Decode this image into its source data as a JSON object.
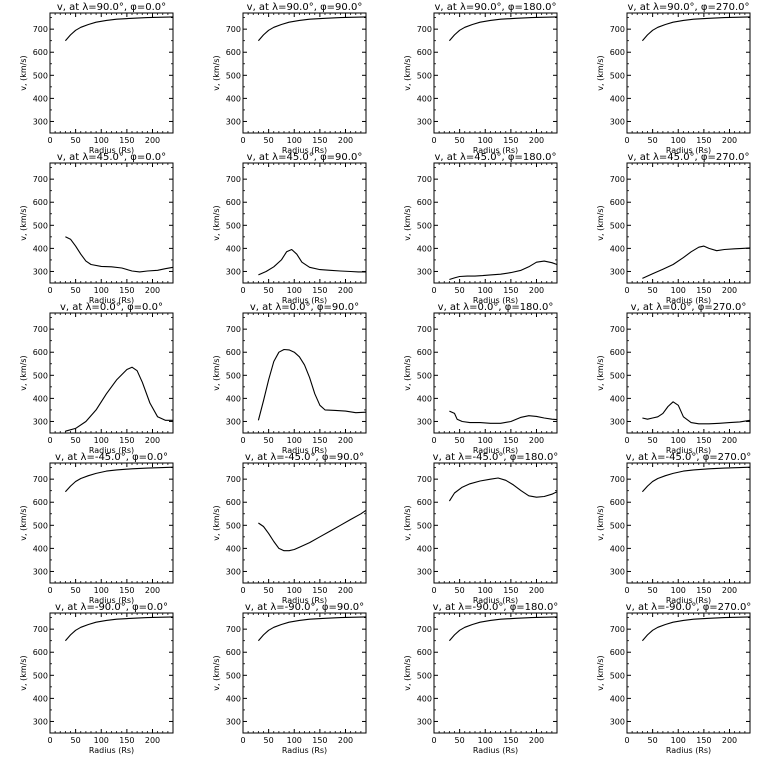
{
  "layout": {
    "rows": 5,
    "cols": 4
  },
  "chart_data": [
    {
      "type": "line",
      "title": "v, at λ=90.0°, φ=0.0°",
      "xlabel": "Radius (Rs)",
      "ylabel": "v, (km/s)",
      "xlim": [
        0,
        240
      ],
      "ylim": [
        250,
        770
      ],
      "xticks": [
        0,
        50,
        100,
        150,
        200
      ],
      "yticks": [
        300,
        400,
        500,
        600,
        700
      ],
      "series": [
        {
          "x": [
            30,
            40,
            50,
            60,
            75,
            90,
            110,
            130,
            160,
            190,
            220,
            240
          ],
          "y": [
            650,
            675,
            695,
            708,
            720,
            730,
            738,
            743,
            747,
            750,
            752,
            753
          ]
        }
      ]
    },
    {
      "type": "line",
      "title": "v, at λ=90.0°, φ=90.0°",
      "xlabel": "Radius (Rs)",
      "ylabel": "v, (km/s)",
      "xlim": [
        0,
        240
      ],
      "ylim": [
        250,
        770
      ],
      "xticks": [
        0,
        50,
        100,
        150,
        200
      ],
      "yticks": [
        300,
        400,
        500,
        600,
        700
      ],
      "series": [
        {
          "x": [
            30,
            40,
            50,
            60,
            75,
            90,
            110,
            130,
            160,
            190,
            220,
            240
          ],
          "y": [
            650,
            675,
            695,
            708,
            720,
            730,
            738,
            743,
            747,
            750,
            752,
            753
          ]
        }
      ]
    },
    {
      "type": "line",
      "title": "v, at λ=90.0°, φ=180.0°",
      "xlabel": "Radius (Rs)",
      "ylabel": "v, (km/s)",
      "xlim": [
        0,
        240
      ],
      "ylim": [
        250,
        770
      ],
      "xticks": [
        0,
        50,
        100,
        150,
        200
      ],
      "yticks": [
        300,
        400,
        500,
        600,
        700
      ],
      "series": [
        {
          "x": [
            30,
            40,
            50,
            60,
            75,
            90,
            110,
            130,
            160,
            190,
            220,
            240
          ],
          "y": [
            650,
            675,
            695,
            708,
            720,
            730,
            738,
            743,
            747,
            750,
            752,
            753
          ]
        }
      ]
    },
    {
      "type": "line",
      "title": "v, at λ=90.0°, φ=270.0°",
      "xlabel": "Radius (Rs)",
      "ylabel": "v, (km/s)",
      "xlim": [
        0,
        240
      ],
      "ylim": [
        250,
        770
      ],
      "xticks": [
        0,
        50,
        100,
        150,
        200
      ],
      "yticks": [
        300,
        400,
        500,
        600,
        700
      ],
      "series": [
        {
          "x": [
            30,
            40,
            50,
            60,
            75,
            90,
            110,
            130,
            160,
            190,
            220,
            240
          ],
          "y": [
            650,
            675,
            695,
            708,
            720,
            730,
            738,
            743,
            747,
            750,
            752,
            753
          ]
        }
      ]
    },
    {
      "type": "line",
      "title": "v, at λ=45.0°, φ=0.0°",
      "xlabel": "Radius (Rs)",
      "ylabel": "v, (km/s)",
      "xlim": [
        0,
        240
      ],
      "ylim": [
        250,
        770
      ],
      "xticks": [
        0,
        50,
        100,
        150,
        200
      ],
      "yticks": [
        300,
        400,
        500,
        600,
        700
      ],
      "series": [
        {
          "x": [
            30,
            40,
            50,
            60,
            70,
            80,
            100,
            120,
            140,
            160,
            175,
            190,
            210,
            225,
            240
          ],
          "y": [
            450,
            440,
            410,
            375,
            345,
            330,
            322,
            320,
            315,
            302,
            298,
            302,
            305,
            312,
            318
          ]
        }
      ]
    },
    {
      "type": "line",
      "title": "v, at λ=45.0°, φ=90.0°",
      "xlabel": "Radius (Rs)",
      "ylabel": "v, (km/s)",
      "xlim": [
        0,
        240
      ],
      "ylim": [
        250,
        770
      ],
      "xticks": [
        0,
        50,
        100,
        150,
        200
      ],
      "yticks": [
        300,
        400,
        500,
        600,
        700
      ],
      "series": [
        {
          "x": [
            30,
            45,
            60,
            75,
            85,
            95,
            105,
            115,
            130,
            150,
            170,
            190,
            210,
            225,
            240
          ],
          "y": [
            285,
            300,
            320,
            350,
            385,
            395,
            375,
            340,
            318,
            308,
            305,
            302,
            300,
            298,
            298
          ]
        }
      ]
    },
    {
      "type": "line",
      "title": "v, at λ=45.0°, φ=180.0°",
      "xlabel": "Radius (Rs)",
      "ylabel": "v, (km/s)",
      "xlim": [
        0,
        240
      ],
      "ylim": [
        250,
        770
      ],
      "xticks": [
        0,
        50,
        100,
        150,
        200
      ],
      "yticks": [
        300,
        400,
        500,
        600,
        700
      ],
      "series": [
        {
          "x": [
            30,
            40,
            50,
            65,
            80,
            95,
            110,
            130,
            150,
            170,
            185,
            200,
            215,
            230,
            240
          ],
          "y": [
            265,
            272,
            278,
            280,
            280,
            282,
            285,
            288,
            295,
            305,
            320,
            340,
            345,
            338,
            330
          ]
        }
      ]
    },
    {
      "type": "line",
      "title": "v, at λ=45.0°, φ=270.0°",
      "xlabel": "Radius (Rs)",
      "ylabel": "v, (km/s)",
      "xlim": [
        0,
        240
      ],
      "ylim": [
        250,
        770
      ],
      "xticks": [
        0,
        50,
        100,
        150,
        200
      ],
      "yticks": [
        300,
        400,
        500,
        600,
        700
      ],
      "series": [
        {
          "x": [
            30,
            50,
            70,
            90,
            110,
            125,
            140,
            150,
            160,
            175,
            190,
            210,
            225,
            240
          ],
          "y": [
            270,
            290,
            310,
            330,
            360,
            385,
            405,
            410,
            400,
            390,
            395,
            398,
            400,
            402
          ]
        }
      ]
    },
    {
      "type": "line",
      "title": "v, at λ=0.0°, φ=0.0°",
      "xlabel": "Radius (Rs)",
      "ylabel": "v, (km/s)",
      "xlim": [
        0,
        240
      ],
      "ylim": [
        250,
        770
      ],
      "xticks": [
        0,
        50,
        100,
        150,
        200
      ],
      "yticks": [
        300,
        400,
        500,
        600,
        700
      ],
      "series": [
        {
          "x": [
            30,
            50,
            70,
            90,
            110,
            130,
            150,
            160,
            170,
            180,
            195,
            210,
            225,
            240
          ],
          "y": [
            258,
            270,
            300,
            350,
            420,
            480,
            525,
            535,
            520,
            470,
            380,
            320,
            305,
            305
          ]
        }
      ]
    },
    {
      "type": "line",
      "title": "v, at λ=0.0°, φ=90.0°",
      "xlabel": "Radius (Rs)",
      "ylabel": "v, (km/s)",
      "xlim": [
        0,
        240
      ],
      "ylim": [
        250,
        770
      ],
      "xticks": [
        0,
        50,
        100,
        150,
        200
      ],
      "yticks": [
        300,
        400,
        500,
        600,
        700
      ],
      "series": [
        {
          "x": [
            30,
            40,
            50,
            60,
            70,
            80,
            90,
            100,
            110,
            120,
            130,
            140,
            150,
            160,
            180,
            200,
            220,
            240
          ],
          "y": [
            305,
            390,
            480,
            560,
            600,
            612,
            610,
            600,
            580,
            545,
            490,
            420,
            370,
            350,
            348,
            345,
            338,
            340
          ]
        }
      ]
    },
    {
      "type": "line",
      "title": "v, at λ=0.0°, φ=180.0°",
      "xlabel": "Radius (Rs)",
      "ylabel": "v, (km/s)",
      "xlim": [
        0,
        240
      ],
      "ylim": [
        250,
        770
      ],
      "xticks": [
        0,
        50,
        100,
        150,
        200
      ],
      "yticks": [
        300,
        400,
        500,
        600,
        700
      ],
      "series": [
        {
          "x": [
            30,
            40,
            45,
            55,
            70,
            90,
            110,
            130,
            150,
            170,
            185,
            200,
            215,
            230,
            240
          ],
          "y": [
            345,
            335,
            310,
            300,
            295,
            295,
            292,
            292,
            300,
            318,
            325,
            322,
            315,
            310,
            308
          ]
        }
      ]
    },
    {
      "type": "line",
      "title": "v, at λ=0.0°, φ=270.0°",
      "xlabel": "Radius (Rs)",
      "ylabel": "v, (km/s)",
      "xlim": [
        0,
        240
      ],
      "ylim": [
        250,
        770
      ],
      "xticks": [
        0,
        50,
        100,
        150,
        200
      ],
      "yticks": [
        300,
        400,
        500,
        600,
        700
      ],
      "series": [
        {
          "x": [
            30,
            40,
            50,
            60,
            70,
            80,
            90,
            100,
            110,
            125,
            140,
            160,
            180,
            200,
            220,
            240
          ],
          "y": [
            315,
            310,
            315,
            320,
            335,
            365,
            385,
            370,
            320,
            295,
            290,
            290,
            292,
            295,
            298,
            305
          ]
        }
      ]
    },
    {
      "type": "line",
      "title": "v, at λ=-45.0°, φ=0.0°",
      "xlabel": "Radius (Rs)",
      "ylabel": "v, (km/s)",
      "xlim": [
        0,
        240
      ],
      "ylim": [
        250,
        770
      ],
      "xticks": [
        0,
        50,
        100,
        150,
        200
      ],
      "yticks": [
        300,
        400,
        500,
        600,
        700
      ],
      "series": [
        {
          "x": [
            30,
            40,
            50,
            60,
            75,
            90,
            110,
            130,
            160,
            190,
            220,
            240
          ],
          "y": [
            645,
            670,
            690,
            703,
            715,
            725,
            735,
            740,
            745,
            748,
            750,
            752
          ]
        }
      ]
    },
    {
      "type": "line",
      "title": "v, at λ=-45.0°, φ=90.0°",
      "xlabel": "Radius (Rs)",
      "ylabel": "v, (km/s)",
      "xlim": [
        0,
        240
      ],
      "ylim": [
        250,
        770
      ],
      "xticks": [
        0,
        50,
        100,
        150,
        200
      ],
      "yticks": [
        300,
        400,
        500,
        600,
        700
      ],
      "series": [
        {
          "x": [
            30,
            40,
            50,
            60,
            70,
            80,
            90,
            100,
            110,
            130,
            150,
            170,
            190,
            210,
            230,
            240
          ],
          "y": [
            510,
            495,
            465,
            430,
            400,
            390,
            390,
            395,
            405,
            425,
            450,
            475,
            500,
            525,
            550,
            565
          ]
        }
      ]
    },
    {
      "type": "line",
      "title": "v, at λ=-45.0°, φ=180.0°",
      "xlabel": "Radius (Rs)",
      "ylabel": "v, (km/s)",
      "xlim": [
        0,
        240
      ],
      "ylim": [
        250,
        770
      ],
      "xticks": [
        0,
        50,
        100,
        150,
        200
      ],
      "yticks": [
        300,
        400,
        500,
        600,
        700
      ],
      "series": [
        {
          "x": [
            30,
            40,
            55,
            70,
            90,
            110,
            125,
            140,
            155,
            170,
            185,
            200,
            215,
            230,
            240
          ],
          "y": [
            605,
            640,
            665,
            680,
            692,
            700,
            705,
            695,
            675,
            650,
            628,
            622,
            625,
            635,
            645
          ]
        }
      ]
    },
    {
      "type": "line",
      "title": "v, at λ=-45.0°, φ=270.0°",
      "xlabel": "Radius (Rs)",
      "ylabel": "v, (km/s)",
      "xlim": [
        0,
        240
      ],
      "ylim": [
        250,
        770
      ],
      "xticks": [
        0,
        50,
        100,
        150,
        200
      ],
      "yticks": [
        300,
        400,
        500,
        600,
        700
      ],
      "series": [
        {
          "x": [
            30,
            40,
            50,
            60,
            75,
            90,
            110,
            130,
            160,
            190,
            220,
            240
          ],
          "y": [
            645,
            670,
            690,
            703,
            715,
            725,
            735,
            740,
            745,
            748,
            750,
            752
          ]
        }
      ]
    },
    {
      "type": "line",
      "title": "v, at λ=-90.0°, φ=0.0°",
      "xlabel": "Radius (Rs)",
      "ylabel": "v, (km/s)",
      "xlim": [
        0,
        240
      ],
      "ylim": [
        250,
        770
      ],
      "xticks": [
        0,
        50,
        100,
        150,
        200
      ],
      "yticks": [
        300,
        400,
        500,
        600,
        700
      ],
      "series": [
        {
          "x": [
            30,
            40,
            50,
            60,
            75,
            90,
            110,
            130,
            160,
            190,
            220,
            240
          ],
          "y": [
            650,
            675,
            695,
            708,
            720,
            730,
            738,
            743,
            747,
            750,
            752,
            753
          ]
        }
      ]
    },
    {
      "type": "line",
      "title": "v, at λ=-90.0°, φ=90.0°",
      "xlabel": "Radius (Rs)",
      "ylabel": "v, (km/s)",
      "xlim": [
        0,
        240
      ],
      "ylim": [
        250,
        770
      ],
      "xticks": [
        0,
        50,
        100,
        150,
        200
      ],
      "yticks": [
        300,
        400,
        500,
        600,
        700
      ],
      "series": [
        {
          "x": [
            30,
            40,
            50,
            60,
            75,
            90,
            110,
            130,
            160,
            190,
            220,
            240
          ],
          "y": [
            650,
            675,
            695,
            708,
            720,
            730,
            738,
            743,
            747,
            750,
            752,
            753
          ]
        }
      ]
    },
    {
      "type": "line",
      "title": "v, at λ=-90.0°, φ=180.0°",
      "xlabel": "Radius (Rs)",
      "ylabel": "v, (km/s)",
      "xlim": [
        0,
        240
      ],
      "ylim": [
        250,
        770
      ],
      "xticks": [
        0,
        50,
        100,
        150,
        200
      ],
      "yticks": [
        300,
        400,
        500,
        600,
        700
      ],
      "series": [
        {
          "x": [
            30,
            40,
            50,
            60,
            75,
            90,
            110,
            130,
            160,
            190,
            220,
            240
          ],
          "y": [
            650,
            675,
            695,
            708,
            720,
            730,
            738,
            743,
            747,
            750,
            752,
            753
          ]
        }
      ]
    },
    {
      "type": "line",
      "title": "v, at λ=-90.0°, φ=270.0°",
      "xlabel": "Radius (Rs)",
      "ylabel": "v, (km/s)",
      "xlim": [
        0,
        240
      ],
      "ylim": [
        250,
        770
      ],
      "xticks": [
        0,
        50,
        100,
        150,
        200
      ],
      "yticks": [
        300,
        400,
        500,
        600,
        700
      ],
      "series": [
        {
          "x": [
            30,
            40,
            50,
            60,
            75,
            90,
            110,
            130,
            160,
            190,
            220,
            240
          ],
          "y": [
            650,
            675,
            695,
            708,
            720,
            730,
            738,
            743,
            747,
            750,
            752,
            753
          ]
        }
      ]
    }
  ]
}
